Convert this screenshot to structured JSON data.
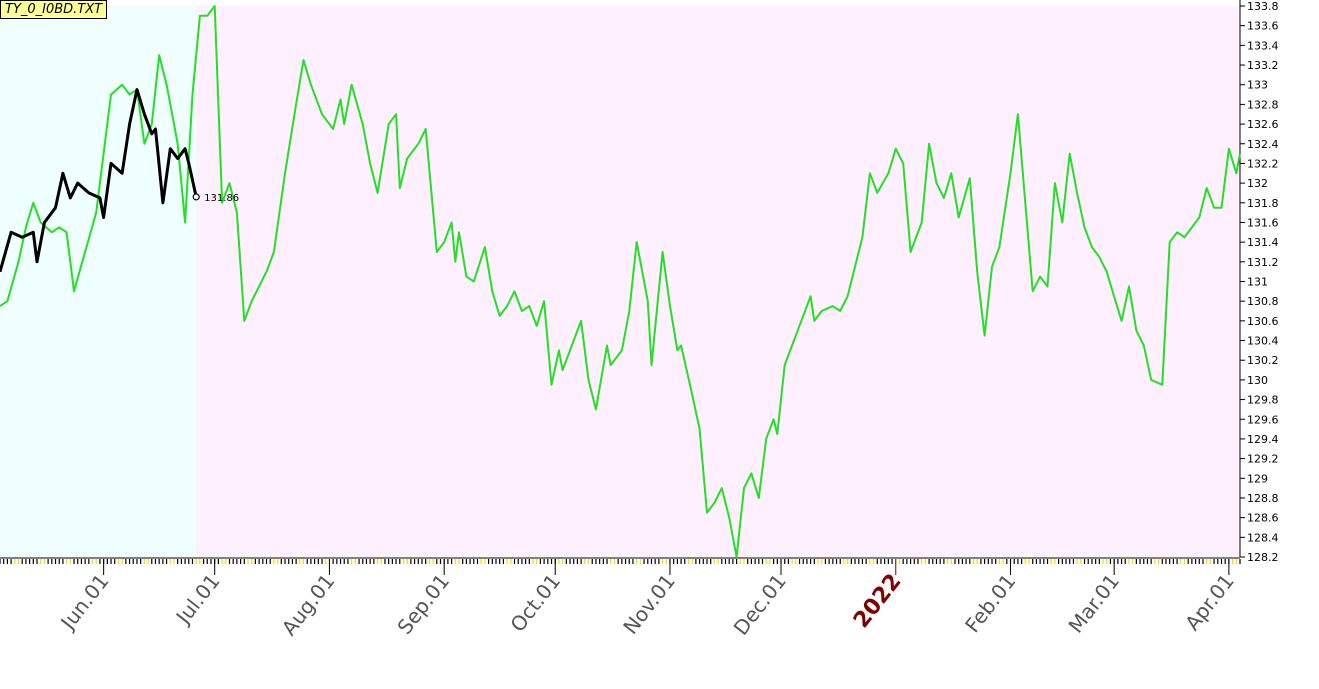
{
  "file_label": "TY_0_I0BD.TXT",
  "colors": {
    "forecast_background": "#f0ffff",
    "actual_background": "#fff0ff",
    "forecast_line": "#22e022",
    "actual_line": "#000000",
    "year_label": "#800000"
  },
  "chart_data": {
    "type": "line",
    "title": "",
    "xlabel": "",
    "ylabel": "",
    "ylim": [
      128.2,
      133.8
    ],
    "y_ticks": [
      "133.8",
      "133.6",
      "133.4",
      "133.2",
      "133",
      "132.8",
      "132.6",
      "132.4",
      "132.2",
      "132",
      "131.8",
      "131.6",
      "131.4",
      "131.2",
      "131",
      "130.8",
      "130.6",
      "130.4",
      "130.2",
      "130",
      "129.8",
      "129.6",
      "129.4",
      "129.2",
      "129",
      "128.8",
      "128.6",
      "128.4",
      "128.2"
    ],
    "x_tick_labels": [
      {
        "label": "Jun.01",
        "date": "2021-06-01"
      },
      {
        "label": "Jul.01",
        "date": "2021-07-01"
      },
      {
        "label": "Aug.01",
        "date": "2021-08-01"
      },
      {
        "label": "Sep.01",
        "date": "2021-09-01"
      },
      {
        "label": "Oct.01",
        "date": "2021-10-01"
      },
      {
        "label": "Nov.01",
        "date": "2021-11-01"
      },
      {
        "label": "Dec.01",
        "date": "2021-12-01"
      },
      {
        "label": "2022",
        "date": "2022-01-01",
        "year": true
      },
      {
        "label": "Feb.01",
        "date": "2022-02-01"
      },
      {
        "label": "Mar.01",
        "date": "2022-03-01"
      },
      {
        "label": "Apr.01",
        "date": "2022-04-01"
      }
    ],
    "x_range": [
      "2021-05-04",
      "2022-04-04"
    ],
    "shade_split_date": "2021-06-26",
    "last_value_label": "131.86",
    "series": [
      {
        "values": [
          [
            "2021-05-04",
            130.75
          ],
          [
            "2021-05-06",
            130.8
          ],
          [
            "2021-05-09",
            131.2
          ],
          [
            "2021-05-11",
            131.55
          ],
          [
            "2021-05-13",
            131.8
          ],
          [
            "2021-05-15",
            131.6
          ],
          [
            "2021-05-18",
            131.5
          ],
          [
            "2021-05-20",
            131.55
          ],
          [
            "2021-05-22",
            131.5
          ],
          [
            "2021-05-24",
            130.9
          ],
          [
            "2021-05-27",
            131.3
          ],
          [
            "2021-05-30",
            131.7
          ],
          [
            "2021-06-01",
            132.3
          ],
          [
            "2021-06-03",
            132.9
          ],
          [
            "2021-06-06",
            133.0
          ],
          [
            "2021-06-08",
            132.9
          ],
          [
            "2021-06-10",
            132.95
          ],
          [
            "2021-06-12",
            132.4
          ],
          [
            "2021-06-14",
            132.6
          ],
          [
            "2021-06-16",
            133.3
          ],
          [
            "2021-06-18",
            133.0
          ],
          [
            "2021-06-21",
            132.4
          ],
          [
            "2021-06-23",
            131.6
          ],
          [
            "2021-06-25",
            132.9
          ],
          [
            "2021-06-27",
            133.7
          ],
          [
            "2021-06-29",
            133.7
          ],
          [
            "2021-07-01",
            133.8
          ],
          [
            "2021-07-03",
            131.8
          ],
          [
            "2021-07-05",
            132.0
          ],
          [
            "2021-07-07",
            131.7
          ],
          [
            "2021-07-09",
            130.6
          ],
          [
            "2021-07-11",
            130.8
          ],
          [
            "2021-07-13",
            130.95
          ],
          [
            "2021-07-15",
            131.1
          ],
          [
            "2021-07-17",
            131.3
          ],
          [
            "2021-07-20",
            132.1
          ],
          [
            "2021-07-23",
            132.8
          ],
          [
            "2021-07-25",
            133.25
          ],
          [
            "2021-07-27",
            133.0
          ],
          [
            "2021-07-30",
            132.7
          ],
          [
            "2021-08-02",
            132.55
          ],
          [
            "2021-08-04",
            132.85
          ],
          [
            "2021-08-05",
            132.6
          ],
          [
            "2021-08-07",
            133.0
          ],
          [
            "2021-08-10",
            132.6
          ],
          [
            "2021-08-12",
            132.2
          ],
          [
            "2021-08-14",
            131.9
          ],
          [
            "2021-08-17",
            132.6
          ],
          [
            "2021-08-19",
            132.7
          ],
          [
            "2021-08-20",
            131.95
          ],
          [
            "2021-08-22",
            132.25
          ],
          [
            "2021-08-25",
            132.4
          ],
          [
            "2021-08-27",
            132.55
          ],
          [
            "2021-08-30",
            131.3
          ],
          [
            "2021-09-01",
            131.4
          ],
          [
            "2021-09-03",
            131.6
          ],
          [
            "2021-09-04",
            131.2
          ],
          [
            "2021-09-05",
            131.5
          ],
          [
            "2021-09-07",
            131.05
          ],
          [
            "2021-09-09",
            131.0
          ],
          [
            "2021-09-12",
            131.35
          ],
          [
            "2021-09-14",
            130.9
          ],
          [
            "2021-09-16",
            130.65
          ],
          [
            "2021-09-18",
            130.75
          ],
          [
            "2021-09-20",
            130.9
          ],
          [
            "2021-09-22",
            130.7
          ],
          [
            "2021-09-24",
            130.75
          ],
          [
            "2021-09-26",
            130.55
          ],
          [
            "2021-09-28",
            130.8
          ],
          [
            "2021-09-30",
            129.95
          ],
          [
            "2021-10-02",
            130.3
          ],
          [
            "2021-10-03",
            130.1
          ],
          [
            "2021-10-06",
            130.4
          ],
          [
            "2021-10-08",
            130.6
          ],
          [
            "2021-10-10",
            130.0
          ],
          [
            "2021-10-12",
            129.7
          ],
          [
            "2021-10-15",
            130.35
          ],
          [
            "2021-10-16",
            130.15
          ],
          [
            "2021-10-19",
            130.3
          ],
          [
            "2021-10-21",
            130.7
          ],
          [
            "2021-10-23",
            131.4
          ],
          [
            "2021-10-26",
            130.8
          ],
          [
            "2021-10-27",
            130.15
          ],
          [
            "2021-10-30",
            131.3
          ],
          [
            "2021-11-01",
            130.75
          ],
          [
            "2021-11-03",
            130.3
          ],
          [
            "2021-11-04",
            130.35
          ],
          [
            "2021-11-07",
            129.85
          ],
          [
            "2021-11-09",
            129.5
          ],
          [
            "2021-11-11",
            128.65
          ],
          [
            "2021-11-13",
            128.75
          ],
          [
            "2021-11-15",
            128.9
          ],
          [
            "2021-11-17",
            128.6
          ],
          [
            "2021-11-19",
            128.2
          ],
          [
            "2021-11-21",
            128.9
          ],
          [
            "2021-11-23",
            129.05
          ],
          [
            "2021-11-25",
            128.8
          ],
          [
            "2021-11-27",
            129.4
          ],
          [
            "2021-11-29",
            129.6
          ],
          [
            "2021-11-30",
            129.45
          ],
          [
            "2021-12-02",
            130.15
          ],
          [
            "2021-12-04",
            130.35
          ],
          [
            "2021-12-06",
            130.55
          ],
          [
            "2021-12-09",
            130.85
          ],
          [
            "2021-12-10",
            130.6
          ],
          [
            "2021-12-12",
            130.7
          ],
          [
            "2021-12-15",
            130.75
          ],
          [
            "2021-12-17",
            130.7
          ],
          [
            "2021-12-19",
            130.85
          ],
          [
            "2021-12-21",
            131.15
          ],
          [
            "2021-12-23",
            131.45
          ],
          [
            "2021-12-25",
            132.1
          ],
          [
            "2021-12-27",
            131.9
          ],
          [
            "2021-12-30",
            132.1
          ],
          [
            "2022-01-01",
            132.35
          ],
          [
            "2022-01-03",
            132.2
          ],
          [
            "2022-01-05",
            131.3
          ],
          [
            "2022-01-08",
            131.6
          ],
          [
            "2022-01-10",
            132.4
          ],
          [
            "2022-01-12",
            132.0
          ],
          [
            "2022-01-14",
            131.85
          ],
          [
            "2022-01-16",
            132.1
          ],
          [
            "2022-01-18",
            131.65
          ],
          [
            "2022-01-21",
            132.05
          ],
          [
            "2022-01-23",
            131.1
          ],
          [
            "2022-01-25",
            130.45
          ],
          [
            "2022-01-27",
            131.15
          ],
          [
            "2022-01-29",
            131.35
          ],
          [
            "2022-02-01",
            132.1
          ],
          [
            "2022-02-03",
            132.7
          ],
          [
            "2022-02-05",
            131.8
          ],
          [
            "2022-02-07",
            130.9
          ],
          [
            "2022-02-09",
            131.05
          ],
          [
            "2022-02-11",
            130.95
          ],
          [
            "2022-02-13",
            132.0
          ],
          [
            "2022-02-15",
            131.6
          ],
          [
            "2022-02-17",
            132.3
          ],
          [
            "2022-02-19",
            131.9
          ],
          [
            "2022-02-21",
            131.55
          ],
          [
            "2022-02-23",
            131.35
          ],
          [
            "2022-02-25",
            131.25
          ],
          [
            "2022-02-27",
            131.1
          ],
          [
            "2022-03-01",
            130.85
          ],
          [
            "2022-03-03",
            130.6
          ],
          [
            "2022-03-05",
            130.95
          ],
          [
            "2022-03-07",
            130.5
          ],
          [
            "2022-03-09",
            130.35
          ],
          [
            "2022-03-11",
            130.0
          ],
          [
            "2022-03-14",
            129.95
          ],
          [
            "2022-03-16",
            131.4
          ],
          [
            "2022-03-18",
            131.5
          ],
          [
            "2022-03-20",
            131.45
          ],
          [
            "2022-03-22",
            131.55
          ],
          [
            "2022-03-24",
            131.65
          ],
          [
            "2022-03-26",
            131.95
          ],
          [
            "2022-03-28",
            131.75
          ],
          [
            "2022-03-30",
            131.75
          ],
          [
            "2022-04-01",
            132.35
          ],
          [
            "2022-04-03",
            132.1
          ],
          [
            "2022-04-04",
            132.3
          ]
        ]
      },
      {
        "values": [
          [
            "2021-05-04",
            131.1
          ],
          [
            "2021-05-07",
            131.5
          ],
          [
            "2021-05-10",
            131.45
          ],
          [
            "2021-05-13",
            131.5
          ],
          [
            "2021-05-14",
            131.2
          ],
          [
            "2021-05-16",
            131.6
          ],
          [
            "2021-05-19",
            131.75
          ],
          [
            "2021-05-21",
            132.1
          ],
          [
            "2021-05-23",
            131.85
          ],
          [
            "2021-05-25",
            132.0
          ],
          [
            "2021-05-28",
            131.9
          ],
          [
            "2021-05-31",
            131.85
          ],
          [
            "2021-06-01",
            131.65
          ],
          [
            "2021-06-03",
            132.2
          ],
          [
            "2021-06-06",
            132.1
          ],
          [
            "2021-06-08",
            132.6
          ],
          [
            "2021-06-10",
            132.95
          ],
          [
            "2021-06-12",
            132.7
          ],
          [
            "2021-06-14",
            132.5
          ],
          [
            "2021-06-15",
            132.55
          ],
          [
            "2021-06-17",
            131.8
          ],
          [
            "2021-06-19",
            132.35
          ],
          [
            "2021-06-21",
            132.25
          ],
          [
            "2021-06-23",
            132.35
          ],
          [
            "2021-06-24",
            132.2
          ],
          [
            "2021-06-26",
            131.86
          ]
        ]
      }
    ]
  }
}
